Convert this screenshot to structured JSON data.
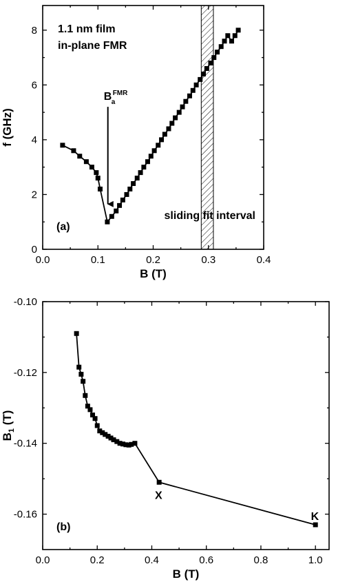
{
  "chart_data": [
    {
      "type": "line",
      "panel_label": "(a)",
      "annotation_title": [
        "1.1 nm film",
        "in-plane FMR"
      ],
      "xlabel": "B (T)",
      "ylabel": "f (GHz)",
      "xlim": [
        0.0,
        0.4
      ],
      "ylim": [
        0,
        8.9
      ],
      "xticks": [
        "0.0",
        "0.1",
        "0.2",
        "0.3",
        "0.4"
      ],
      "yticks": [
        "0",
        "2",
        "4",
        "6",
        "8"
      ],
      "arrow_label": "B",
      "arrow_label_sub": "a",
      "arrow_label_sup": "FMR",
      "arrow_from": [
        0.118,
        5.2
      ],
      "arrow_to": [
        0.118,
        1.65
      ],
      "hatched_band": [
        0.287,
        0.309
      ],
      "hatched_band_label": "sliding fit interval",
      "series": [
        {
          "x": [
            0.036,
            0.056,
            0.067,
            0.079,
            0.089,
            0.097,
            0.1,
            0.104,
            0.117,
            0.125,
            0.133,
            0.139,
            0.145,
            0.152,
            0.158,
            0.164,
            0.171,
            0.177,
            0.183,
            0.19,
            0.196,
            0.202,
            0.209,
            0.215,
            0.221,
            0.228,
            0.234,
            0.24,
            0.247,
            0.253,
            0.259,
            0.266,
            0.272,
            0.278,
            0.285,
            0.291,
            0.297,
            0.304,
            0.31,
            0.316,
            0.323,
            0.329,
            0.335,
            0.342,
            0.348,
            0.354
          ],
          "y": [
            3.8,
            3.6,
            3.4,
            3.2,
            3.0,
            2.8,
            2.6,
            2.2,
            1.0,
            1.2,
            1.4,
            1.6,
            1.8,
            2.0,
            2.2,
            2.4,
            2.6,
            2.8,
            3.0,
            3.2,
            3.4,
            3.6,
            3.8,
            4.0,
            4.2,
            4.4,
            4.6,
            4.8,
            5.0,
            5.2,
            5.4,
            5.6,
            5.8,
            6.0,
            6.2,
            6.4,
            6.6,
            6.8,
            7.0,
            7.2,
            7.4,
            7.6,
            7.8,
            7.6,
            7.8,
            8.0
          ]
        }
      ]
    },
    {
      "type": "line",
      "panel_label": "(b)",
      "xlabel": "B (T)",
      "ylabel": "B",
      "ylabel_sub": "1",
      "ylabel_unit": "(T)",
      "xlim": [
        0.0,
        1.05
      ],
      "ylim": [
        -0.17,
        -0.1
      ],
      "xticks": [
        "0.0",
        "0.2",
        "0.4",
        "0.6",
        "0.8",
        "1.0"
      ],
      "yticks": [
        "-0.10",
        "-0.12",
        "-0.14",
        "-0.16"
      ],
      "point_labels": [
        {
          "text": "X",
          "x": 0.425,
          "y": -0.1545
        },
        {
          "text": "K",
          "x": 0.998,
          "y": -0.1605
        }
      ],
      "series": [
        {
          "x": [
            0.124,
            0.133,
            0.141,
            0.148,
            0.156,
            0.165,
            0.174,
            0.183,
            0.192,
            0.2,
            0.209,
            0.219,
            0.229,
            0.24,
            0.25,
            0.26,
            0.272,
            0.283,
            0.294,
            0.305,
            0.316,
            0.325,
            0.338,
            0.427,
            1.0
          ],
          "y": [
            -0.109,
            -0.1185,
            -0.1205,
            -0.1225,
            -0.1265,
            -0.1295,
            -0.1305,
            -0.132,
            -0.133,
            -0.135,
            -0.1365,
            -0.137,
            -0.1375,
            -0.138,
            -0.1385,
            -0.139,
            -0.1395,
            -0.14,
            -0.1402,
            -0.1404,
            -0.1405,
            -0.1403,
            -0.14,
            -0.151,
            -0.163
          ]
        }
      ]
    }
  ]
}
